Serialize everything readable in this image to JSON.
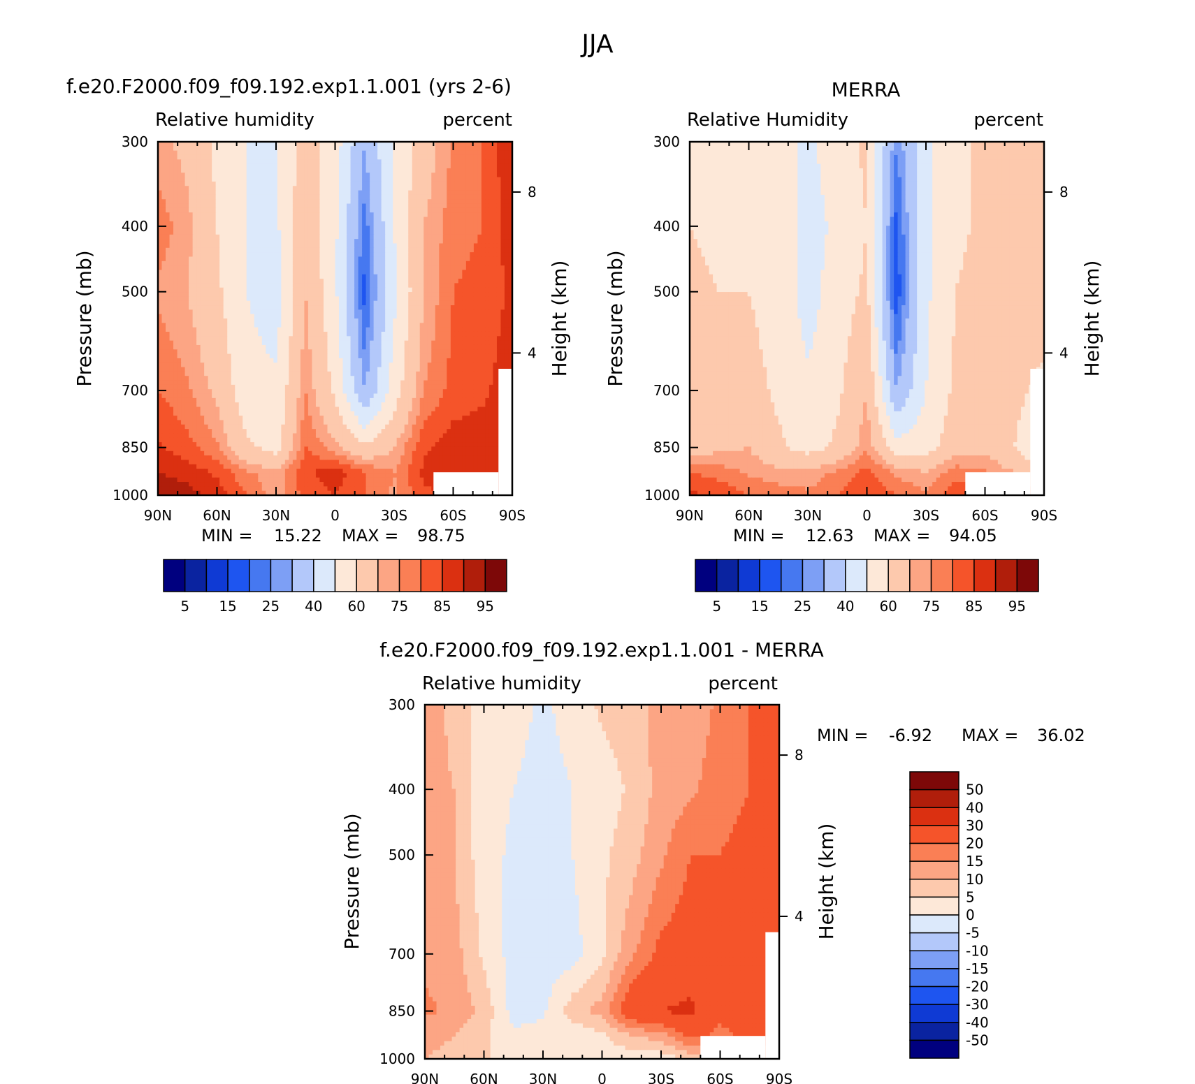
{
  "figure": {
    "title": "JJA"
  },
  "colors": {
    "abs_scale": [
      "#00007f",
      "#0a23a0",
      "#0f3ad4",
      "#1e55f0",
      "#4678f0",
      "#7d9ff5",
      "#b3c8fa",
      "#dce9fb",
      "#fde8d8",
      "#fdc9ad",
      "#fca584",
      "#fa7f55",
      "#f5542a",
      "#db3011",
      "#b01e0b",
      "#7d0808"
    ],
    "diff_scale": [
      "#00007f",
      "#0a23a0",
      "#0f3ad4",
      "#1e55f0",
      "#4678f0",
      "#7d9ff5",
      "#b3c8fa",
      "#dce9fb",
      "#fde8d8",
      "#fdc9ad",
      "#fca584",
      "#fa7f55",
      "#f5542a",
      "#db3011",
      "#b01e0b",
      "#7d0808"
    ],
    "missing": "#ffffff"
  },
  "chart_data": [
    {
      "type": "heatmap",
      "title": "f.e20.F2000.f09_f09.192.exp1.1.001 (yrs 2-6)",
      "left_label": "Relative humidity",
      "right_label": "percent",
      "ylabel": "Pressure (mb)",
      "ylabel_right": "Height (km)",
      "x_ticks": [
        "90N",
        "60N",
        "30N",
        "0",
        "30S",
        "60S",
        "90S"
      ],
      "x_range": [
        90,
        -90
      ],
      "y_ticks": [
        "300",
        "400",
        "500",
        "700",
        "850",
        "1000"
      ],
      "y_range": [
        1000,
        300
      ],
      "y_right_ticks": [
        "4",
        "8"
      ],
      "stats": {
        "min_label": "MIN =",
        "min": "15.22",
        "max_label": "MAX =",
        "max": "98.75"
      },
      "colorbar": {
        "orientation": "horizontal",
        "labels": [
          "5",
          "15",
          "25",
          "40",
          "60",
          "75",
          "85",
          "95"
        ]
      },
      "fields": {
        "lats": [
          90,
          75,
          60,
          45,
          30,
          15,
          0,
          -15,
          -30,
          -45,
          -60,
          -75,
          -90
        ],
        "levels": [
          1000,
          925,
          850,
          700,
          500,
          400,
          300
        ],
        "rh": [
          [
            95,
            92,
            88,
            80,
            72,
            82,
            85,
            80,
            74,
            84,
            86,
            86,
            88
          ],
          [
            90,
            88,
            84,
            76,
            72,
            84,
            88,
            80,
            75,
            86,
            88,
            88,
            90
          ],
          [
            86,
            82,
            76,
            62,
            56,
            80,
            72,
            62,
            70,
            84,
            88,
            88,
            90
          ],
          [
            80,
            76,
            68,
            54,
            52,
            75,
            58,
            30,
            55,
            75,
            82,
            84,
            88
          ],
          [
            74,
            70,
            62,
            50,
            45,
            70,
            52,
            18,
            48,
            70,
            80,
            82,
            86
          ],
          [
            78,
            72,
            60,
            50,
            48,
            68,
            52,
            22,
            50,
            70,
            78,
            80,
            88
          ],
          [
            72,
            68,
            58,
            50,
            50,
            65,
            55,
            30,
            52,
            65,
            76,
            80,
            90
          ]
        ]
      }
    },
    {
      "type": "heatmap",
      "title": "MERRA",
      "left_label": "Relative Humidity",
      "right_label": "percent",
      "ylabel": "Pressure (mb)",
      "ylabel_right": "Height (km)",
      "x_ticks": [
        "90N",
        "60N",
        "30N",
        "0",
        "30S",
        "60S",
        "90S"
      ],
      "x_range": [
        90,
        -90
      ],
      "y_ticks": [
        "300",
        "400",
        "500",
        "700",
        "850",
        "1000"
      ],
      "y_range": [
        1000,
        300
      ],
      "y_right_ticks": [
        "4",
        "8"
      ],
      "stats": {
        "min_label": "MIN =",
        "min": "12.63",
        "max_label": "MAX =",
        "max": "94.05"
      },
      "colorbar": {
        "orientation": "horizontal",
        "labels": [
          "5",
          "15",
          "25",
          "40",
          "60",
          "75",
          "85",
          "95"
        ]
      },
      "fields": {
        "lats": [
          90,
          75,
          60,
          45,
          30,
          15,
          0,
          -15,
          -30,
          -45,
          -60,
          -75,
          -90
        ],
        "levels": [
          1000,
          925,
          850,
          700,
          500,
          400,
          300
        ],
        "rh": [
          [
            86,
            84,
            80,
            78,
            76,
            80,
            85,
            80,
            76,
            84,
            82,
            78,
            70
          ],
          [
            80,
            78,
            74,
            72,
            72,
            76,
            82,
            74,
            70,
            78,
            76,
            70,
            60
          ],
          [
            66,
            68,
            70,
            62,
            56,
            62,
            74,
            55,
            56,
            66,
            68,
            60,
            50
          ],
          [
            62,
            64,
            64,
            58,
            52,
            58,
            70,
            30,
            50,
            62,
            64,
            62,
            58
          ],
          [
            62,
            60,
            60,
            56,
            46,
            55,
            62,
            16,
            48,
            60,
            64,
            62,
            64
          ],
          [
            60,
            58,
            58,
            56,
            46,
            52,
            60,
            18,
            48,
            58,
            62,
            64,
            66
          ],
          [
            58,
            58,
            58,
            54,
            48,
            55,
            62,
            25,
            48,
            58,
            62,
            66,
            64
          ]
        ]
      }
    },
    {
      "type": "heatmap",
      "title": "f.e20.F2000.f09_f09.192.exp1.1.001 - MERRA",
      "left_label": "Relative humidity",
      "right_label": "percent",
      "ylabel": "Pressure (mb)",
      "ylabel_right": "Height (km)",
      "x_ticks": [
        "90N",
        "60N",
        "30N",
        "0",
        "30S",
        "60S",
        "90S"
      ],
      "x_range": [
        90,
        -90
      ],
      "y_ticks": [
        "300",
        "400",
        "500",
        "700",
        "850",
        "1000"
      ],
      "y_range": [
        1000,
        300
      ],
      "y_right_ticks": [
        "4",
        "8"
      ],
      "stats": {
        "min_label": "MIN =",
        "min": "-6.92",
        "max_label": "MAX =",
        "max": "36.02"
      },
      "colorbar": {
        "orientation": "vertical",
        "labels": [
          "50",
          "40",
          "30",
          "20",
          "15",
          "10",
          "5",
          "0",
          "-5",
          "-10",
          "-15",
          "-20",
          "-30",
          "-40",
          "-50"
        ]
      },
      "fields": {
        "lats": [
          90,
          75,
          60,
          45,
          30,
          15,
          0,
          -15,
          -30,
          -45,
          -60,
          -75,
          -90
        ],
        "levels": [
          1000,
          925,
          850,
          700,
          500,
          400,
          300
        ],
        "diff": [
          [
            10,
            8,
            6,
            2,
            2,
            2,
            1,
            2,
            2,
            6,
            8,
            12,
            18
          ],
          [
            12,
            10,
            6,
            1,
            2,
            1,
            4,
            10,
            12,
            22,
            18,
            22,
            26
          ],
          [
            16,
            14,
            8,
            -2,
            -1,
            8,
            12,
            26,
            30,
            32,
            22,
            24,
            26
          ],
          [
            14,
            12,
            4,
            -2,
            -3,
            -2,
            4,
            14,
            22,
            24,
            20,
            22,
            26
          ],
          [
            12,
            10,
            2,
            -1,
            -2,
            0,
            4,
            8,
            14,
            20,
            20,
            22,
            28
          ],
          [
            12,
            10,
            2,
            0,
            -2,
            0,
            2,
            6,
            12,
            14,
            18,
            20,
            26
          ],
          [
            14,
            8,
            2,
            2,
            -1,
            2,
            6,
            8,
            12,
            12,
            16,
            20,
            26
          ]
        ]
      }
    }
  ]
}
